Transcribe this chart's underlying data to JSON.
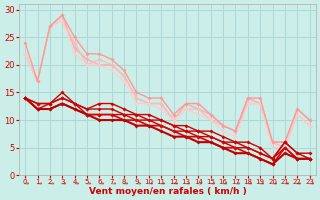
{
  "bg_color": "#cceee8",
  "grid_color": "#aad8d4",
  "xlabel": "Vent moyen/en rafales ( km/h )",
  "xlabel_color": "#cc0000",
  "tick_color": "#cc0000",
  "axis_color": "#888888",
  "xlim": [
    -0.5,
    23.5
  ],
  "ylim": [
    0,
    31
  ],
  "yticks": [
    0,
    5,
    10,
    15,
    20,
    25,
    30
  ],
  "x_ticks": [
    0,
    1,
    2,
    3,
    4,
    5,
    6,
    7,
    8,
    9,
    10,
    11,
    12,
    13,
    14,
    15,
    16,
    17,
    18,
    19,
    20,
    21,
    22,
    23
  ],
  "lines_light": [
    {
      "x": [
        0,
        1,
        2,
        3,
        4,
        5,
        6,
        7,
        8,
        9,
        10,
        11,
        12,
        13,
        14,
        15,
        16,
        17,
        18,
        19,
        20,
        21,
        22,
        23
      ],
      "y": [
        22,
        17,
        27,
        29,
        23,
        21,
        20,
        20,
        18,
        14,
        13,
        13,
        10,
        13,
        12,
        11,
        9,
        8,
        14,
        13,
        6,
        6,
        12,
        10
      ],
      "color": "#ffaaaa",
      "lw": 1.0
    },
    {
      "x": [
        0,
        1,
        2,
        3,
        4,
        5,
        6,
        7,
        8,
        9,
        10,
        11,
        12,
        13,
        14,
        15,
        16,
        17,
        18,
        19,
        20,
        21,
        22,
        23
      ],
      "y": [
        22,
        17,
        27,
        28,
        24,
        20,
        21,
        20,
        18,
        14,
        13,
        13,
        10,
        12,
        12,
        10,
        9,
        8,
        13,
        13,
        6,
        5,
        11,
        9
      ],
      "color": "#ffbbbb",
      "lw": 1.0
    },
    {
      "x": [
        0,
        1,
        2,
        3,
        4,
        5,
        6,
        7,
        8,
        9,
        10,
        11,
        12,
        13,
        14,
        15,
        16,
        17,
        18,
        19,
        20,
        21,
        22,
        23
      ],
      "y": [
        22,
        17,
        27,
        28,
        22,
        20,
        20,
        19,
        17,
        13,
        13,
        12,
        10,
        12,
        11,
        10,
        8,
        7,
        13,
        13,
        5,
        5,
        11,
        9
      ],
      "color": "#ffcccc",
      "lw": 0.8
    },
    {
      "x": [
        0,
        1,
        2,
        3,
        4,
        5,
        6,
        7,
        8,
        9,
        10,
        11,
        12,
        13,
        14,
        15,
        16,
        17,
        18,
        19,
        20,
        21,
        22,
        23
      ],
      "y": [
        24,
        17,
        27,
        29,
        25,
        22,
        22,
        21,
        19,
        15,
        14,
        14,
        11,
        13,
        13,
        11,
        9,
        8,
        14,
        14,
        6,
        6,
        12,
        10
      ],
      "color": "#ff9999",
      "lw": 1.0
    }
  ],
  "lines_dark": [
    {
      "x": [
        0,
        1,
        2,
        3,
        4,
        5,
        6,
        7,
        8,
        9,
        10,
        11,
        12,
        13,
        14,
        15,
        16,
        17,
        18,
        19,
        20,
        21,
        22,
        23
      ],
      "y": [
        14,
        13,
        13,
        15,
        13,
        12,
        13,
        13,
        12,
        11,
        11,
        10,
        9,
        9,
        8,
        8,
        7,
        6,
        6,
        5,
        3,
        6,
        4,
        4
      ],
      "color": "#cc0000",
      "lw": 1.0
    },
    {
      "x": [
        0,
        1,
        2,
        3,
        4,
        5,
        6,
        7,
        8,
        9,
        10,
        11,
        12,
        13,
        14,
        15,
        16,
        17,
        18,
        19,
        20,
        21,
        22,
        23
      ],
      "y": [
        14,
        13,
        13,
        14,
        13,
        12,
        12,
        12,
        11,
        11,
        10,
        10,
        9,
        8,
        8,
        7,
        6,
        6,
        5,
        4,
        3,
        6,
        4,
        3
      ],
      "color": "#cc0000",
      "lw": 1.0
    },
    {
      "x": [
        0,
        1,
        2,
        3,
        4,
        5,
        6,
        7,
        8,
        9,
        10,
        11,
        12,
        13,
        14,
        15,
        16,
        17,
        18,
        19,
        20,
        21,
        22,
        23
      ],
      "y": [
        14,
        12,
        13,
        14,
        13,
        11,
        11,
        11,
        11,
        10,
        10,
        9,
        8,
        8,
        7,
        7,
        6,
        5,
        5,
        4,
        3,
        5,
        3,
        3
      ],
      "color": "#cc0000",
      "lw": 1.0
    },
    {
      "x": [
        0,
        1,
        2,
        3,
        4,
        5,
        6,
        7,
        8,
        9,
        10,
        11,
        12,
        13,
        14,
        15,
        16,
        17,
        18,
        19,
        20,
        21,
        22,
        23
      ],
      "y": [
        14,
        12,
        12,
        13,
        12,
        11,
        11,
        11,
        10,
        10,
        9,
        9,
        8,
        7,
        7,
        6,
        5,
        5,
        4,
        3,
        2,
        5,
        3,
        3
      ],
      "color": "#dd0000",
      "lw": 1.2
    },
    {
      "x": [
        0,
        1,
        2,
        3,
        4,
        5,
        6,
        7,
        8,
        9,
        10,
        11,
        12,
        13,
        14,
        15,
        16,
        17,
        18,
        19,
        20,
        21,
        22,
        23
      ],
      "y": [
        14,
        12,
        12,
        13,
        12,
        11,
        10,
        10,
        10,
        9,
        9,
        8,
        7,
        7,
        6,
        6,
        5,
        4,
        4,
        3,
        2,
        4,
        3,
        3
      ],
      "color": "#bb0000",
      "lw": 1.5
    }
  ]
}
